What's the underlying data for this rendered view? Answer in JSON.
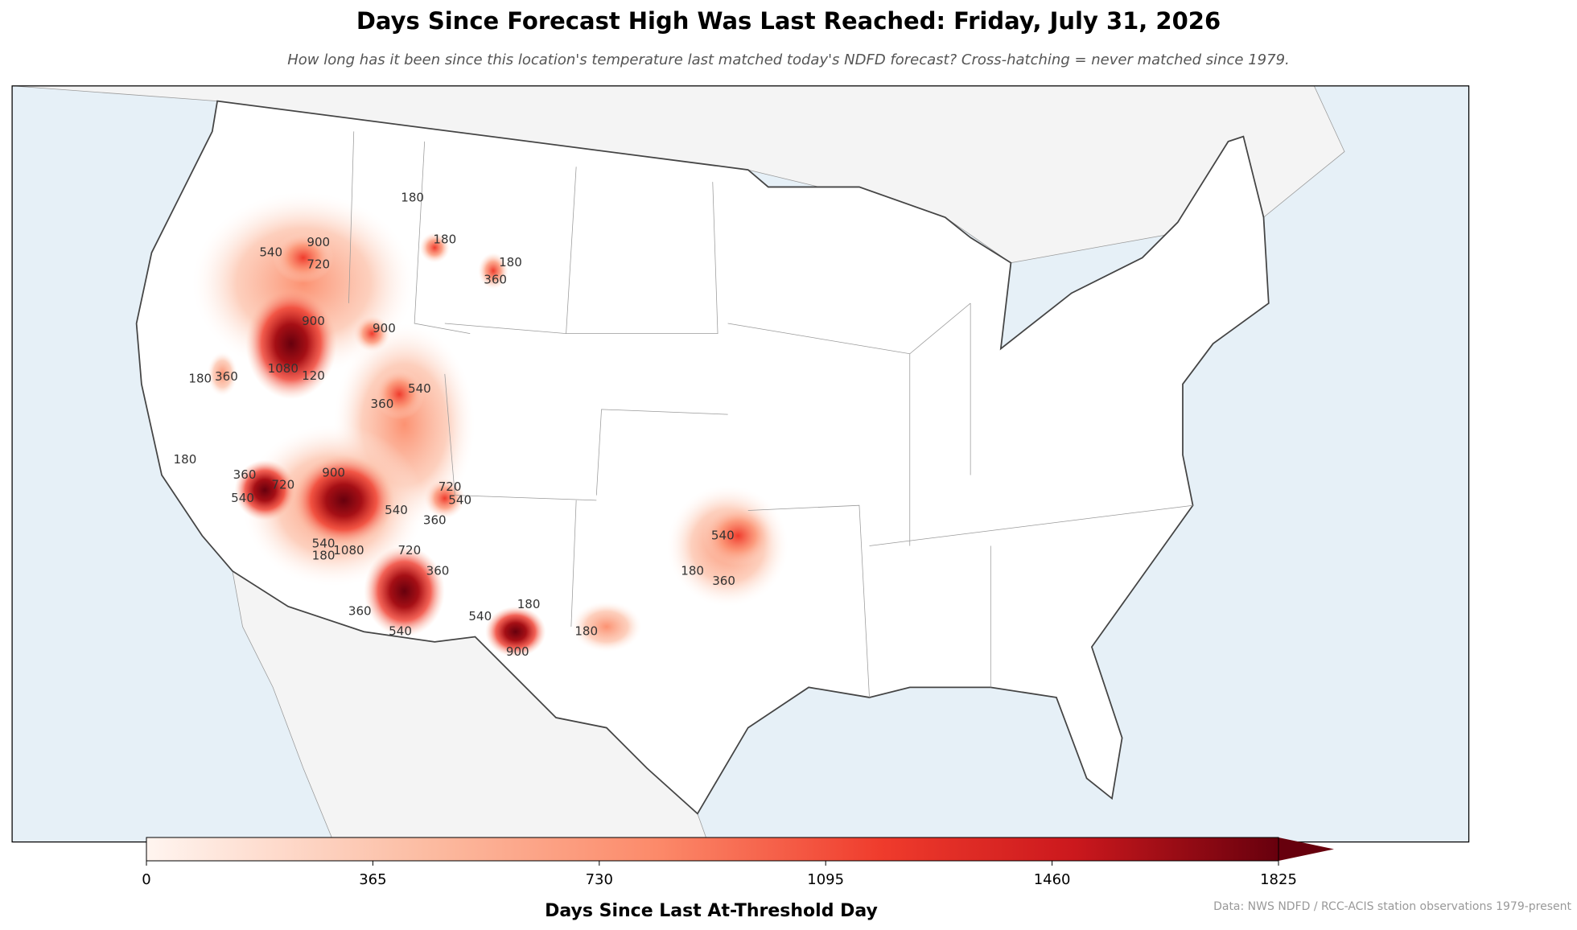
{
  "header": {
    "title": "Days Since Forecast High Was Last Reached: Friday, July 31, 2026",
    "subtitle": "How long has it been since this location's temperature last matched today's NDFD forecast? Cross-hatching = never matched since 1979."
  },
  "map": {
    "contour_labels": [
      "180",
      "540",
      "900",
      "720",
      "180",
      "180",
      "360",
      "900",
      "900",
      "1080",
      "120",
      "360",
      "180",
      "540",
      "360",
      "180",
      "360",
      "540",
      "720",
      "900",
      "540",
      "720",
      "540",
      "360",
      "540",
      "1080",
      "180",
      "720",
      "360",
      "540",
      "180",
      "360",
      "180",
      "540",
      "180",
      "900",
      "360",
      "540"
    ]
  },
  "colorbar": {
    "label": "Days Since Last At-Threshold Day",
    "range": [
      0,
      1825
    ],
    "ticks": [
      0,
      365,
      730,
      1095,
      1460,
      1825
    ],
    "extend": "max"
  },
  "source": "Data: NWS NDFD / RCC-ACIS station observations 1979-present"
}
